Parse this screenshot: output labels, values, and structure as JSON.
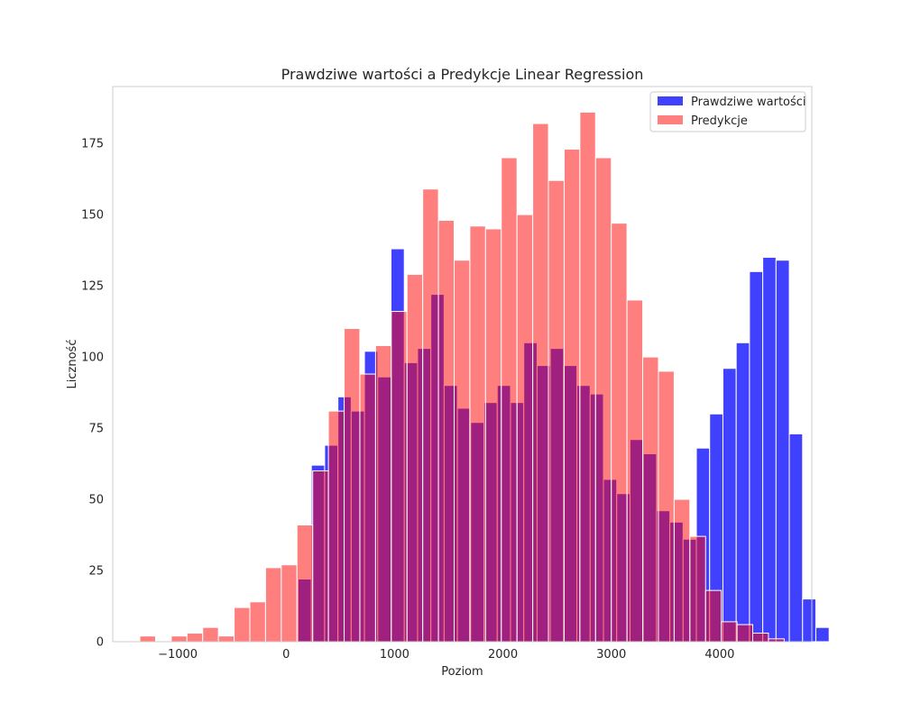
{
  "chart_data": {
    "type": "histogram",
    "title": "Prawdziwe wartości a Predykcje Linear Regression",
    "xlabel": "Poziom",
    "ylabel": "Liczność",
    "xlim": [
      -1600,
      4850
    ],
    "ylim": [
      0,
      195
    ],
    "xticks": [
      -1000,
      0,
      1000,
      2000,
      3000,
      4000
    ],
    "xtick_labels": [
      "−1000",
      "0",
      "1000",
      "2000",
      "3000",
      "4000"
    ],
    "yticks": [
      0,
      25,
      50,
      75,
      100,
      125,
      150,
      175
    ],
    "grid": false,
    "legend_position": "upper right",
    "series": [
      {
        "name": "Prawdziwe wartości",
        "color": "#0000ff",
        "alpha": 0.75,
        "bin_start": 110,
        "bin_width": 122.5,
        "values": [
          22,
          62,
          69,
          86,
          81,
          102,
          93,
          138,
          98,
          103,
          122,
          90,
          82,
          77,
          84,
          90,
          84,
          105,
          97,
          103,
          97,
          90,
          87,
          57,
          52,
          71,
          66,
          46,
          42,
          36,
          68,
          80,
          96,
          105,
          130,
          135,
          134,
          73,
          15,
          5
        ]
      },
      {
        "name": "Predykcje",
        "color": "#ff0000",
        "alpha": 0.5,
        "bin_start": -1350,
        "bin_width": 145,
        "values": [
          2,
          0,
          2,
          3,
          5,
          2,
          12,
          14,
          26,
          27,
          41,
          60,
          81,
          110,
          94,
          104,
          116,
          129,
          159,
          148,
          134,
          146,
          145,
          170,
          150,
          182,
          162,
          173,
          186,
          170,
          147,
          120,
          100,
          95,
          50,
          37,
          18,
          7,
          6,
          3,
          1
        ]
      }
    ]
  }
}
